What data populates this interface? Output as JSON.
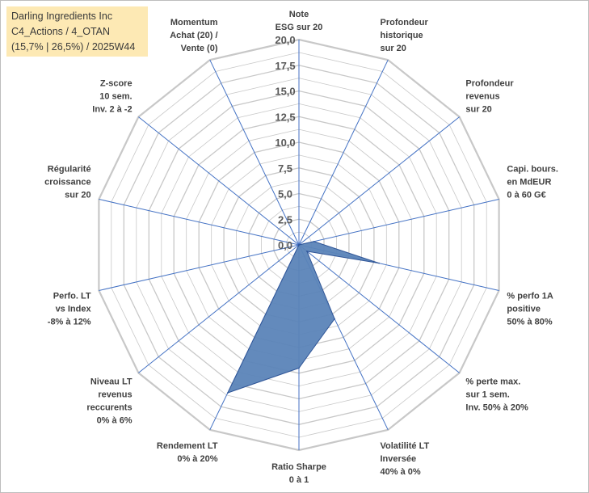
{
  "title_box": {
    "line1": "Darling Ingredients Inc",
    "line2": "C4_Actions / 4_OTAN",
    "line3": "(15,7% | 26,5%) / 2025W44"
  },
  "colors": {
    "grid": "#c8c8c8",
    "spoke": "#4472c4",
    "fill": "#5b84b8",
    "stroke": "#2f5597"
  },
  "chart_data": {
    "type": "radar",
    "title": "Darling Ingredients Inc",
    "rmin": 0,
    "rmax": 20,
    "tick_step": 2.5,
    "tick_labels": [
      "0,0",
      "2,5",
      "5,0",
      "7,5",
      "10,0",
      "12,5",
      "15,0",
      "17,5",
      "20,0"
    ],
    "axes": [
      {
        "lines": [
          "Note",
          "ESG sur 20"
        ]
      },
      {
        "lines": [
          "Profondeur",
          "historique",
          "sur 20"
        ]
      },
      {
        "lines": [
          "Profondeur",
          "revenus",
          "sur 20"
        ]
      },
      {
        "lines": [
          "Capi. bours.",
          "en MdEUR",
          "0 à 60 G€"
        ]
      },
      {
        "lines": [
          "% perfo 1A",
          "positive",
          "50% à 80%"
        ]
      },
      {
        "lines": [
          "% perte max.",
          "sur 1 sem.",
          "Inv. 50% à 20%"
        ]
      },
      {
        "lines": [
          "Volatilité LT",
          "Inversée",
          "40% à 0%"
        ]
      },
      {
        "lines": [
          "Ratio Sharpe",
          "0 à 1"
        ]
      },
      {
        "lines": [
          "Rendement LT",
          "0% à 20%"
        ]
      },
      {
        "lines": [
          "Niveau LT",
          "revenus",
          "reccurents",
          "0% à 6%"
        ]
      },
      {
        "lines": [
          "Perfo. LT",
          "vs Index",
          "-8% à 12%"
        ]
      },
      {
        "lines": [
          "Régularité",
          "croissance",
          "sur 20"
        ]
      },
      {
        "lines": [
          "Z-score",
          "10 sem.",
          "Inv. 2 à -2"
        ]
      },
      {
        "lines": [
          "Momentum",
          "Achat (20) /",
          "Vente (0)"
        ]
      }
    ],
    "series": [
      {
        "name": "Darling Ingredients Inc",
        "values": [
          0,
          0,
          0,
          1.5,
          8,
          1,
          8,
          12,
          16,
          0,
          0,
          0,
          0,
          0
        ]
      }
    ]
  }
}
